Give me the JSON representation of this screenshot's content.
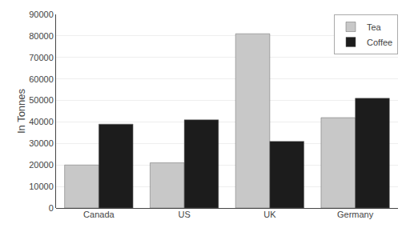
{
  "chart_data": {
    "type": "bar",
    "categories": [
      "Canada",
      "US",
      "UK",
      "Germany"
    ],
    "series": [
      {
        "name": "Tea",
        "color": "#c8c8c8",
        "values": [
          20000,
          21000,
          81000,
          42000
        ]
      },
      {
        "name": "Coffee",
        "color": "#1c1c1c",
        "values": [
          39000,
          41000,
          31000,
          51000
        ]
      }
    ],
    "ylabel": "In Tonnes",
    "ylim": [
      0,
      90000
    ],
    "yticks": [
      0,
      10000,
      20000,
      30000,
      40000,
      50000,
      60000,
      70000,
      80000,
      90000
    ],
    "grid": true,
    "legend": "upper right"
  }
}
